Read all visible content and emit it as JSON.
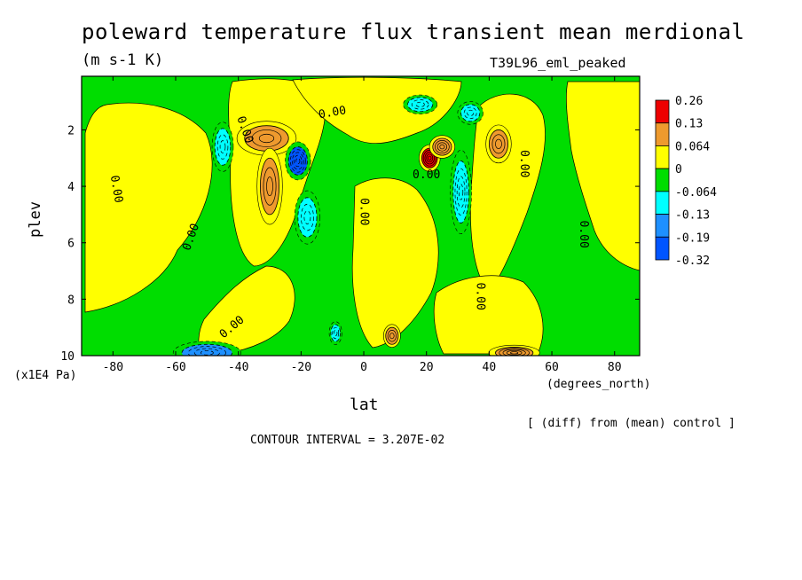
{
  "header": {
    "title": "poleward temperature flux transient mean merdional",
    "units": "(m s-1 K)",
    "experiment": "T39L96_eml_peaked"
  },
  "footer": {
    "diff_note": "[ (diff) from (mean) control ]",
    "contour_interval": "CONTOUR INTERVAL = 3.207E-02"
  },
  "chart_data": {
    "type": "heatmap",
    "title": "poleward temperature flux transient mean merdional",
    "xlabel": "lat",
    "x_unit_label": "(degrees_north)",
    "ylabel": "plev",
    "y_unit_label": "(x1E4 Pa)",
    "xlim": [
      -90,
      88
    ],
    "ylim": [
      10,
      0.1
    ],
    "x_ticks": [
      "-80",
      "-60",
      "-40",
      "-20",
      "0",
      "20",
      "40",
      "60",
      "80"
    ],
    "y_ticks": [
      "2",
      "4",
      "6",
      "8",
      "10"
    ],
    "colorbar": {
      "labels": [
        "0.26",
        "0.13",
        "0.064",
        "0",
        "-0.064",
        "-0.13",
        "-0.19",
        "-0.32"
      ],
      "colors": [
        "#ee0000",
        "#ee9a2e",
        "#ffff00",
        "#00dd00",
        "#00ffff",
        "#1e90ff",
        "#0055ff"
      ]
    },
    "contour_labels": [
      {
        "text": "0.00",
        "lat": -79,
        "plev": 4.1,
        "rot": 80
      },
      {
        "text": "0.00",
        "lat": -55,
        "plev": 5.8,
        "rot": -70
      },
      {
        "text": "0.00",
        "lat": -42,
        "plev": 9.0,
        "rot": -40
      },
      {
        "text": "0.00",
        "lat": -38,
        "plev": 2.0,
        "rot": 70
      },
      {
        "text": "0.00",
        "lat": -10,
        "plev": 1.4,
        "rot": -10
      },
      {
        "text": "0.00",
        "lat": 0,
        "plev": 4.9,
        "rot": 90
      },
      {
        "text": "0.00",
        "lat": 20,
        "plev": 3.6,
        "rot": 0
      },
      {
        "text": "0.00",
        "lat": 37,
        "plev": 7.9,
        "rot": 90
      },
      {
        "text": "0.00",
        "lat": 51,
        "plev": 3.2,
        "rot": 90
      },
      {
        "text": "0.00",
        "lat": 70,
        "plev": 5.7,
        "rot": 90
      }
    ],
    "features": [
      {
        "lat": -31,
        "plev": 2.3,
        "value": 0.11,
        "rx": 7,
        "ry": 0.45
      },
      {
        "lat": -30,
        "plev": 4.0,
        "value": 0.11,
        "rx": 3,
        "ry": 1.0
      },
      {
        "lat": -45,
        "plev": 2.6,
        "value": -0.11,
        "rx": 2.5,
        "ry": 0.65
      },
      {
        "lat": -21,
        "plev": 3.1,
        "value": -0.2,
        "rx": 3,
        "ry": 0.5
      },
      {
        "lat": -18,
        "plev": 5.1,
        "value": -0.1,
        "rx": 3,
        "ry": 0.7
      },
      {
        "lat": -50,
        "plev": 9.9,
        "value": -0.14,
        "rx": 8,
        "ry": 0.3
      },
      {
        "lat": -9,
        "plev": 9.2,
        "value": -0.09,
        "rx": 1.5,
        "ry": 0.3
      },
      {
        "lat": 21,
        "plev": 3.0,
        "value": 0.24,
        "rx": 2.5,
        "ry": 0.35
      },
      {
        "lat": 25,
        "plev": 2.6,
        "value": 0.12,
        "rx": 3,
        "ry": 0.3
      },
      {
        "lat": 31,
        "plev": 4.2,
        "value": -0.12,
        "rx": 2.5,
        "ry": 1.1
      },
      {
        "lat": 34,
        "plev": 1.4,
        "value": -0.09,
        "rx": 3,
        "ry": 0.3
      },
      {
        "lat": 43,
        "plev": 2.5,
        "value": 0.09,
        "rx": 3,
        "ry": 0.5
      },
      {
        "lat": 9,
        "plev": 9.3,
        "value": 0.09,
        "rx": 2,
        "ry": 0.3
      },
      {
        "lat": 48,
        "plev": 9.9,
        "value": 0.15,
        "rx": 6,
        "ry": 0.2
      },
      {
        "lat": 18,
        "plev": 1.1,
        "value": -0.08,
        "rx": 4,
        "ry": 0.25
      }
    ]
  }
}
